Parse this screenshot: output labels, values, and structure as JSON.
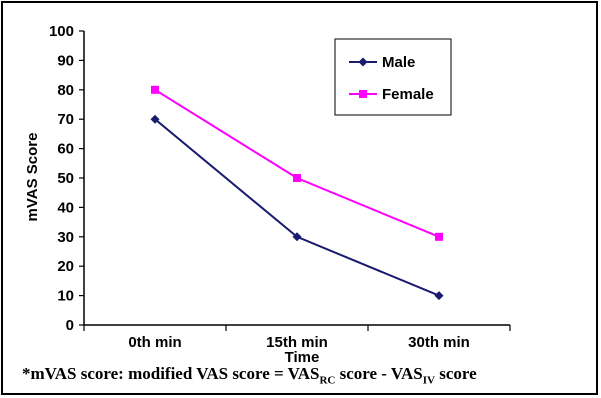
{
  "chart_data": {
    "type": "line",
    "categories": [
      "0th min",
      "15th min",
      "30th min"
    ],
    "series": [
      {
        "name": "Male",
        "values": [
          70,
          30,
          10
        ],
        "color": "#1a1a6e",
        "marker": "diamond"
      },
      {
        "name": "Female",
        "values": [
          80,
          50,
          30
        ],
        "color": "#ff00ff",
        "marker": "square"
      }
    ],
    "xlabel": "Time",
    "ylabel": "mVAS Score",
    "ylim": [
      0,
      100
    ],
    "yticks": [
      0,
      10,
      20,
      30,
      40,
      50,
      60,
      70,
      80,
      90,
      100
    ],
    "grid": false,
    "legend_position": "top-right"
  },
  "footnote": {
    "prefix": "*mVAS score: modified VAS score = VAS",
    "sub1": "RC",
    "middle": " score - VAS",
    "sub2": "IV",
    "suffix": " score"
  }
}
